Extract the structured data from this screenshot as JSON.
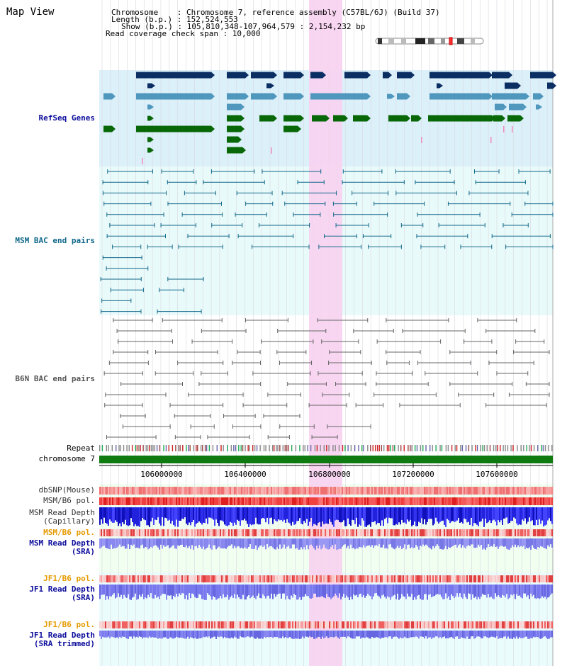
{
  "header": {
    "title": "Map View",
    "chromosome_line": "Chromosome    : Chromosome 7, reference assembly (C57BL/6J) (Build 37)",
    "length_line": "Length (b.p.) : 152,524,553",
    "show_line": "Show (b.p.) : 105,810,348-107,964,579 : 2,154,232 bp",
    "span_line": "Read coverage check span : 10,000"
  },
  "tracks": {
    "refseq": "RefSeq Genes",
    "msm_bac": "MSM BAC end pairs",
    "b6n_bac": "B6N BAC end pairs",
    "repeat": "Repeat",
    "chromosome": "chromosome 7",
    "dbsnp": "dbSNP(Mouse)",
    "msm_b6_pol_1": "MSM/B6 pol.",
    "msm_depth_cap_1": "MSM Read Depth",
    "msm_depth_cap_2": "(Capillary)",
    "msm_b6_pol_2": "MSM/B6 pol.",
    "msm_depth_sra_1": "MSM Read Depth",
    "msm_depth_sra_2": "(SRA)",
    "jf1_b6_pol_1": "JF1/B6 pol.",
    "jf1_depth_sra_1": "JF1 Read Depth",
    "jf1_depth_sra_2": "(SRA)",
    "jf1_b6_pol_2": "JF1/B6 pol.",
    "jf1_depth_trim_1": "JF1 Read Depth",
    "jf1_depth_trim_2": "(SRA trimmed)"
  },
  "axis": {
    "ticks": [
      "106000000",
      "106400000",
      "106800000",
      "107200000",
      "107600000"
    ]
  },
  "colors": {
    "refseq_dark": "#0b2e63",
    "refseq_light": "#4f97bd",
    "refseq_green": "#086808",
    "msm_line": "#11688a",
    "b6n_line": "#666666",
    "highlight": "#f7d2ef",
    "chromosome": "#0f7a0f",
    "label_blue": "#0c0c9c",
    "label_teal": "#11688a",
    "label_orange": "#e59a00",
    "label_gray": "#555555"
  }
}
